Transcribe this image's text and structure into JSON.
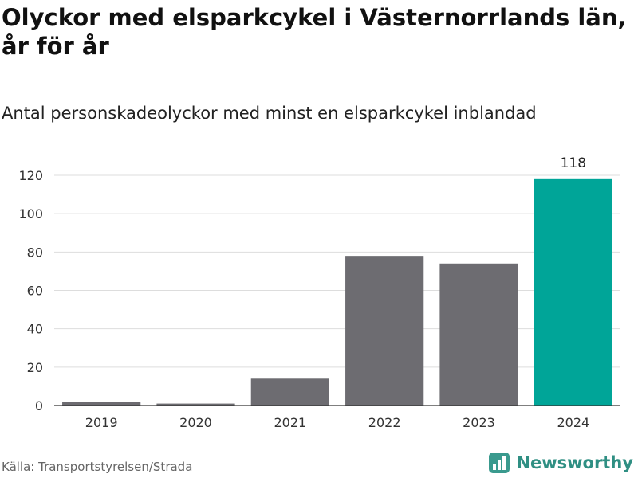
{
  "title": "Olyckor med elsparkcykel i Västernorrlands län, år för år",
  "subtitle": "Antal personskadeolyckor med minst en elsparkcykel inblandad",
  "source": "Källa: Transportstyrelsen/Strada",
  "brand": {
    "name": "Newsworthy",
    "logo_icon": "bar-chart-icon",
    "color": "#3a9a8e"
  },
  "colors": {
    "bar": "#6d6c71",
    "highlight": "#00a598",
    "grid": "#dddddd"
  },
  "chart_data": {
    "type": "bar",
    "categories": [
      "2019",
      "2020",
      "2021",
      "2022",
      "2023",
      "2024"
    ],
    "values": [
      2,
      1,
      14,
      78,
      74,
      118
    ],
    "highlight_index": 5,
    "data_labels": [
      null,
      null,
      null,
      null,
      null,
      "118"
    ],
    "ylim": [
      0,
      120
    ],
    "yticks": [
      0,
      20,
      40,
      60,
      80,
      100,
      120
    ],
    "grid": true,
    "legend": "none"
  }
}
